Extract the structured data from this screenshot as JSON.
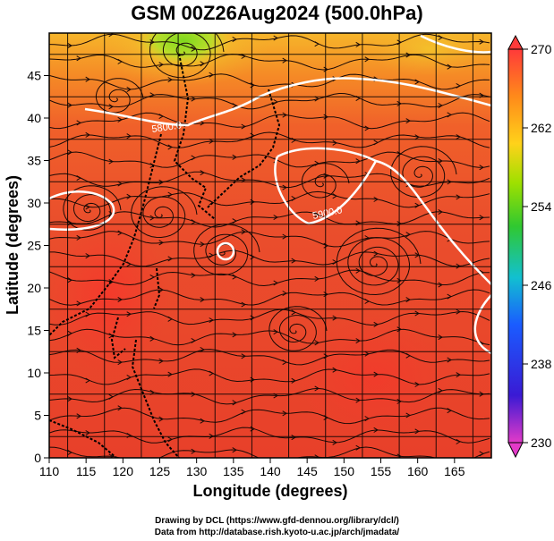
{
  "title": "GSM 00Z26Aug2024 (500.0hPa)",
  "xaxis": {
    "label": "Longitude (degrees)",
    "ticks": [
      "110",
      "115",
      "120",
      "125",
      "130",
      "135",
      "140",
      "145",
      "150",
      "155",
      "160",
      "165"
    ]
  },
  "yaxis": {
    "label": "Latitude  (degrees)",
    "ticks": [
      "0",
      "5",
      "10",
      "15",
      "20",
      "25",
      "30",
      "35",
      "40",
      "45"
    ]
  },
  "colorbar": {
    "ticks": [
      "270",
      "262",
      "254",
      "246",
      "238",
      "230"
    ],
    "colors": [
      "#ff3a3a",
      "#ff8a1a",
      "#ffd21a",
      "#5cd400",
      "#12c0d0",
      "#1a5cff",
      "#2a1ad0",
      "#e040d0"
    ]
  },
  "contours": [
    "5800.0",
    "5900.0"
  ],
  "credits": {
    "line1": "Drawing by DCL (https://www.gfd-dennou.org/library/dcl/)",
    "line2": "Data from http://database.rish.kyoto-u.ac.jp/arch/jmadata/"
  }
}
